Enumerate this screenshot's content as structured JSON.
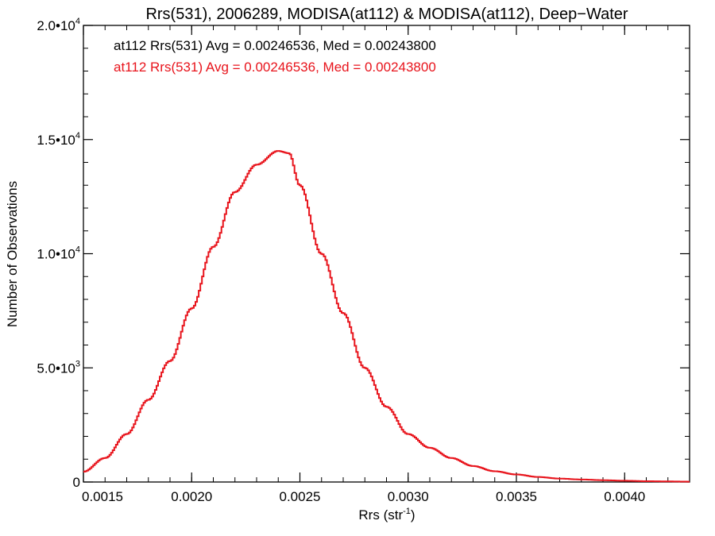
{
  "chart_data": {
    "type": "line",
    "title": "Rrs(531), 2006289, MODISA(at112) & MODISA(at112), Deep−Water",
    "xlabel": "Rrs (str",
    "xlabel_sup": "-1",
    "xlabel_end": ")",
    "ylabel": "Number of Observations",
    "xlim": [
      0.0015,
      0.0043
    ],
    "ylim": [
      0,
      20000
    ],
    "x_ticks": [
      {
        "value": 0.0015,
        "label": "0.0015"
      },
      {
        "value": 0.002,
        "label": "0.0020"
      },
      {
        "value": 0.0025,
        "label": "0.0025"
      },
      {
        "value": 0.003,
        "label": "0.0030"
      },
      {
        "value": 0.0035,
        "label": "0.0035"
      },
      {
        "value": 0.004,
        "label": "0.0040"
      }
    ],
    "y_ticks": [
      {
        "value": 0,
        "label": "0",
        "sup": ""
      },
      {
        "value": 5000,
        "label": "5.0•10",
        "sup": "3"
      },
      {
        "value": 10000,
        "label": "1.0•10",
        "sup": "4"
      },
      {
        "value": 15000,
        "label": "1.5•10",
        "sup": "4"
      },
      {
        "value": 20000,
        "label": "2.0•10",
        "sup": "4"
      }
    ],
    "annotations": [
      {
        "text": "at112 Rrs(531) Avg = 0.00246536, Med = 0.00243800",
        "color": "#000000"
      },
      {
        "text": "at112 Rrs(531) Avg = 0.00246536, Med = 0.00243800",
        "color": "#e8141c"
      }
    ],
    "series": [
      {
        "color": "#e8141c",
        "style": "step",
        "x": [
          0.0015,
          0.0016,
          0.0017,
          0.0018,
          0.0019,
          0.002,
          0.0021,
          0.0022,
          0.0023,
          0.0024,
          0.00245,
          0.0025,
          0.0026,
          0.0027,
          0.0028,
          0.0029,
          0.003,
          0.0031,
          0.0032,
          0.0033,
          0.0034,
          0.0035,
          0.0036,
          0.0037,
          0.0038,
          0.0039,
          0.004,
          0.0041,
          0.0042,
          0.0043
        ],
        "y": [
          450,
          1050,
          2100,
          3600,
          5300,
          7600,
          10300,
          12700,
          13900,
          14500,
          14400,
          13000,
          10000,
          7400,
          5000,
          3300,
          2100,
          1500,
          1050,
          700,
          470,
          330,
          220,
          150,
          110,
          80,
          55,
          35,
          25,
          15
        ]
      }
    ]
  }
}
